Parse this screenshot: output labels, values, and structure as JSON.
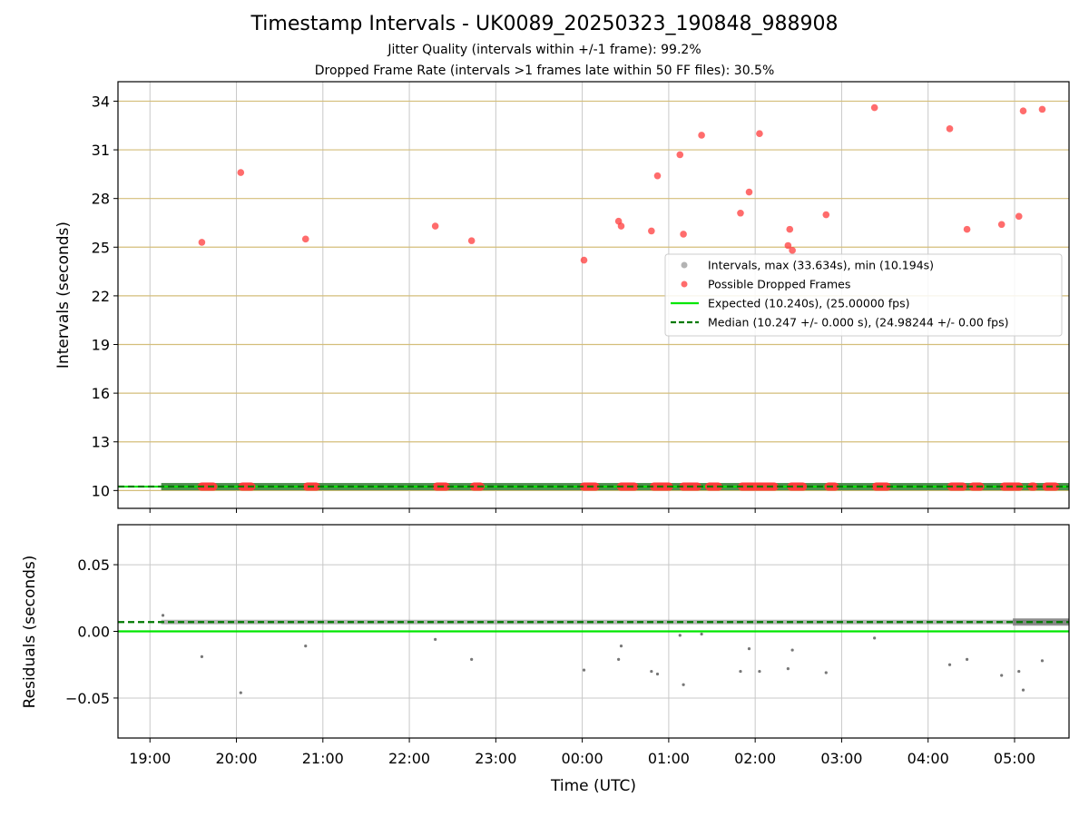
{
  "figure": {
    "title": "Timestamp Intervals - UK0089_20250323_190848_988908",
    "subtitle_1": "Jitter Quality (intervals within +/-1 frame): 99.2%",
    "subtitle_2": "Dropped Frame Rate (intervals >1 frames late within 50 FF files): 30.5%"
  },
  "colors": {
    "expected": "#00e600",
    "median": "#007a00",
    "median_band": "#2f7a2f",
    "dropped": "#ff3b3b",
    "intervals": "#999999",
    "residual_points": "#777777",
    "gold_grid": "#d4be7a",
    "grid": "#c8c8c8"
  },
  "chart_data": [
    {
      "type": "scatter",
      "xlabel": "",
      "ylabel": "Intervals (seconds)",
      "x_unit": "hours since 19:00 UTC",
      "xlim": [
        -0.37,
        10.63
      ],
      "ylim": [
        8.9,
        35.2
      ],
      "yticks": [
        "10",
        "13",
        "16",
        "19",
        "22",
        "25",
        "28",
        "31",
        "34"
      ],
      "grid": true,
      "legend_position": "center-right",
      "legend": [
        "Intervals, max (33.634s), min (10.194s)",
        "Possible Dropped Frames",
        "Expected (10.240s), (25.00000 fps)",
        "Median (10.247 +/- 0.000 s), (24.98244 +/- 0.00 fps)"
      ],
      "expected_value": 10.24,
      "median_value": 10.247,
      "intervals_x_range": [
        0.13,
        10.63
      ],
      "dropped_frames": {
        "name": "Possible Dropped Frames",
        "points": [
          [
            0.6,
            25.3
          ],
          [
            1.05,
            29.6
          ],
          [
            1.8,
            25.5
          ],
          [
            3.3,
            26.3
          ],
          [
            3.72,
            25.4
          ],
          [
            5.02,
            24.2
          ],
          [
            5.42,
            26.6
          ],
          [
            5.45,
            26.3
          ],
          [
            5.8,
            26.0
          ],
          [
            5.87,
            29.4
          ],
          [
            6.13,
            30.7
          ],
          [
            6.17,
            25.8
          ],
          [
            6.38,
            31.9
          ],
          [
            6.83,
            27.1
          ],
          [
            6.93,
            28.4
          ],
          [
            7.05,
            32.0
          ],
          [
            7.38,
            25.1
          ],
          [
            7.4,
            26.1
          ],
          [
            7.43,
            24.8
          ],
          [
            7.82,
            27.0
          ],
          [
            8.38,
            33.6
          ],
          [
            9.25,
            32.3
          ],
          [
            9.45,
            26.1
          ],
          [
            9.85,
            26.4
          ],
          [
            10.05,
            26.9
          ],
          [
            10.1,
            33.4
          ],
          [
            10.32,
            33.5
          ]
        ],
        "baseline_clusters": [
          [
            0.55,
            0.78
          ],
          [
            1.02,
            1.22
          ],
          [
            1.77,
            1.97
          ],
          [
            3.27,
            3.47
          ],
          [
            3.7,
            3.87
          ],
          [
            4.97,
            5.2
          ],
          [
            5.4,
            5.65
          ],
          [
            5.78,
            6.05
          ],
          [
            6.12,
            6.38
          ],
          [
            6.42,
            6.62
          ],
          [
            6.8,
            7.27
          ],
          [
            7.37,
            7.6
          ],
          [
            7.8,
            7.97
          ],
          [
            8.35,
            8.57
          ],
          [
            9.22,
            9.45
          ],
          [
            9.47,
            9.65
          ],
          [
            9.83,
            10.1
          ],
          [
            10.15,
            10.27
          ],
          [
            10.32,
            10.52
          ]
        ]
      }
    },
    {
      "type": "scatter",
      "xlabel": "Time (UTC)",
      "ylabel": "Residuals (seconds)",
      "x_unit": "hours since 19:00 UTC",
      "xlim": [
        -0.37,
        10.63
      ],
      "ylim": [
        -0.08,
        0.08
      ],
      "yticks": [
        "0.05",
        "0.00",
        "−0.05"
      ],
      "xticks": [
        "19:00",
        "20:00",
        "21:00",
        "22:00",
        "23:00",
        "00:00",
        "01:00",
        "02:00",
        "03:00",
        "04:00",
        "05:00"
      ],
      "grid": true,
      "expected_residual": 0.0,
      "median_residual": 0.007,
      "outlier_points": [
        [
          0.15,
          0.012
        ],
        [
          0.6,
          -0.019
        ],
        [
          1.05,
          -0.046
        ],
        [
          1.8,
          -0.011
        ],
        [
          3.3,
          -0.006
        ],
        [
          3.72,
          -0.021
        ],
        [
          5.02,
          -0.029
        ],
        [
          5.42,
          -0.021
        ],
        [
          5.45,
          -0.011
        ],
        [
          5.8,
          -0.03
        ],
        [
          5.87,
          -0.032
        ],
        [
          6.13,
          -0.003
        ],
        [
          6.17,
          -0.04
        ],
        [
          6.38,
          -0.002
        ],
        [
          6.83,
          -0.03
        ],
        [
          6.93,
          -0.013
        ],
        [
          7.05,
          -0.03
        ],
        [
          7.38,
          -0.028
        ],
        [
          7.43,
          -0.014
        ],
        [
          7.82,
          -0.031
        ],
        [
          8.38,
          -0.005
        ],
        [
          9.25,
          -0.025
        ],
        [
          9.45,
          -0.021
        ],
        [
          9.85,
          -0.033
        ],
        [
          10.05,
          -0.03
        ],
        [
          10.1,
          -0.044
        ],
        [
          10.32,
          -0.022
        ]
      ]
    }
  ]
}
